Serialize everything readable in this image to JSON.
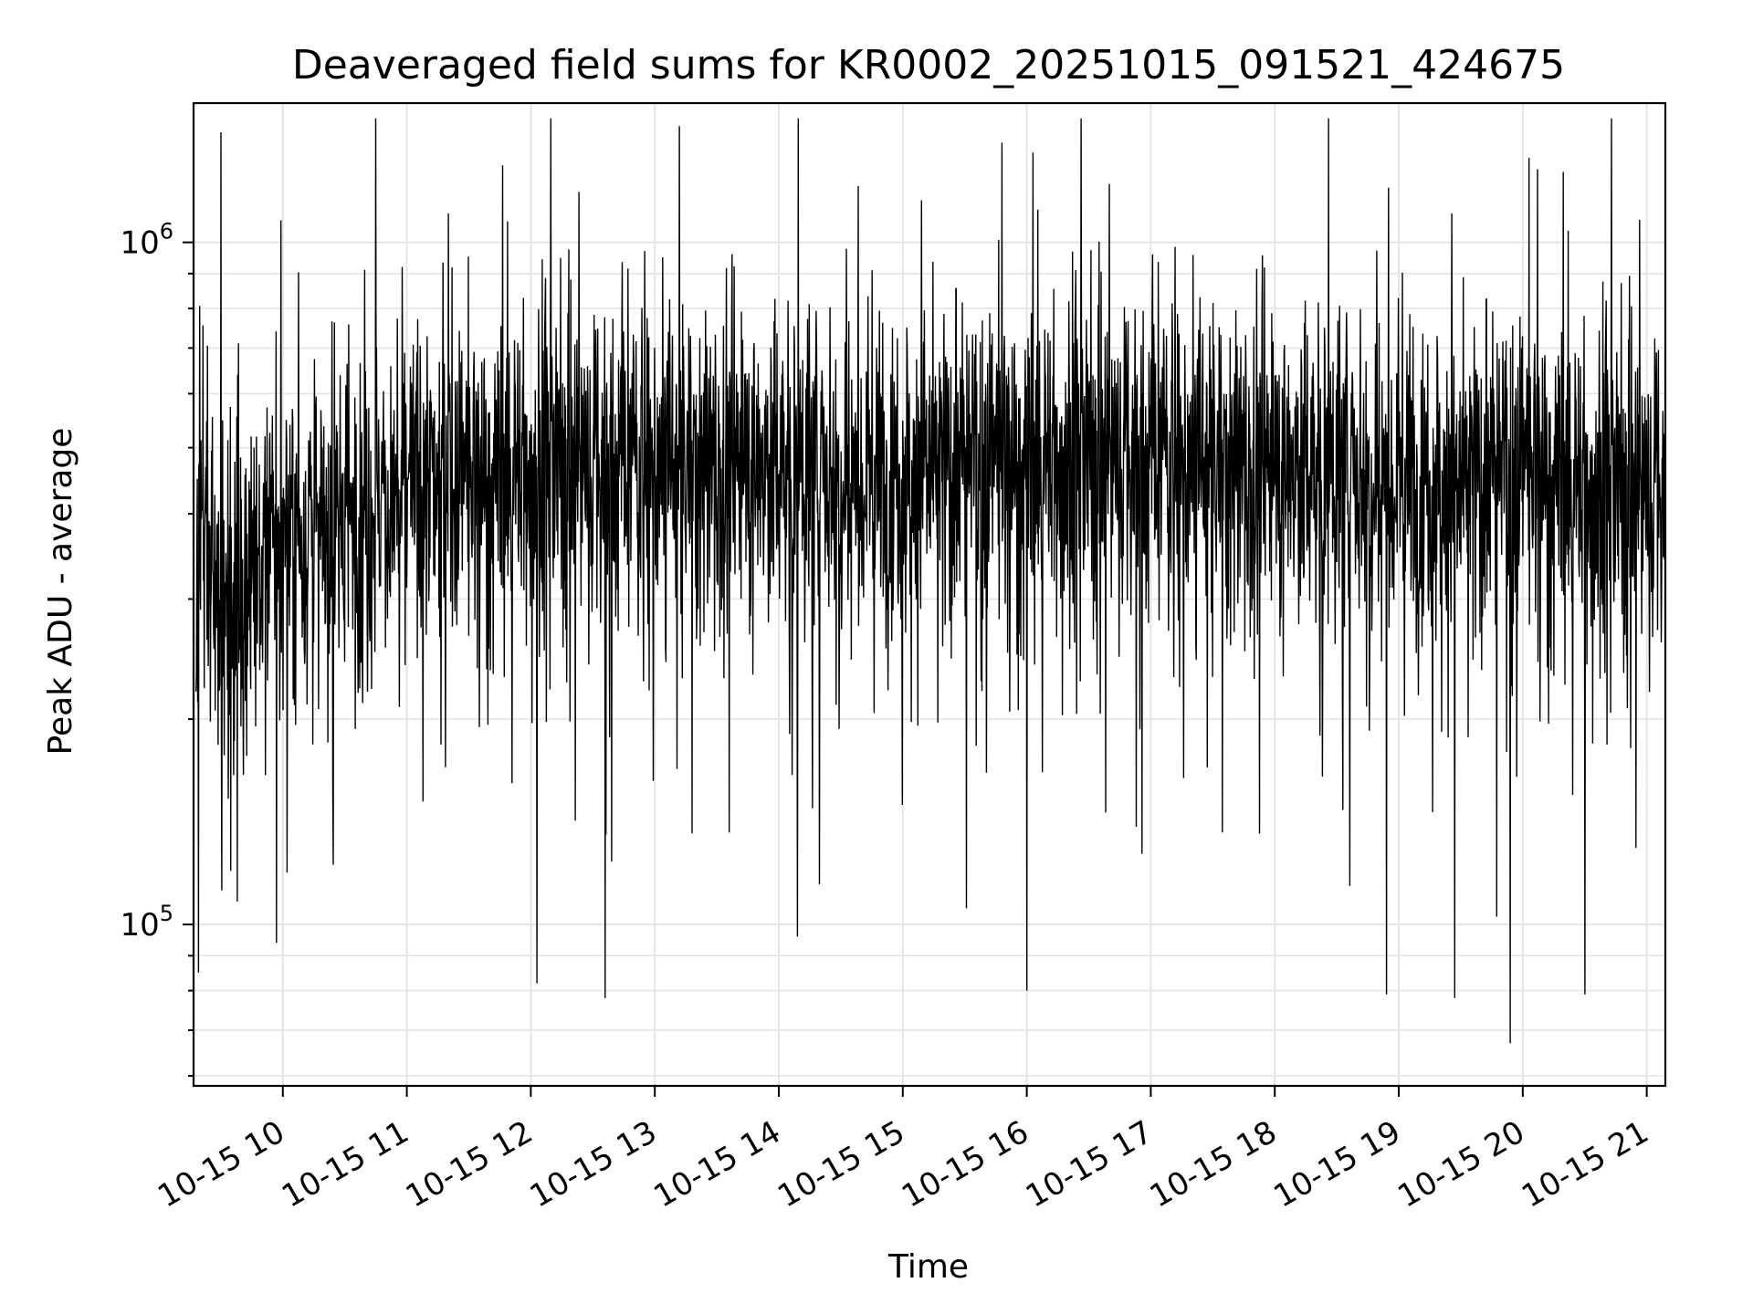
{
  "chart_data": {
    "type": "line",
    "title": "Deaveraged field sums for KR0002_20251015_091521_424675",
    "xlabel": "Time",
    "ylabel": "Peak ADU - average",
    "yscale": "log",
    "ylim": [
      58000,
      1600000
    ],
    "xlim_hours": [
      9.28,
      21.15
    ],
    "grid": true,
    "line_color": "#000000",
    "x_ticks": [
      {
        "hour": 10,
        "label": "10-15 10"
      },
      {
        "hour": 11,
        "label": "10-15 11"
      },
      {
        "hour": 12,
        "label": "10-15 12"
      },
      {
        "hour": 13,
        "label": "10-15 13"
      },
      {
        "hour": 14,
        "label": "10-15 14"
      },
      {
        "hour": 15,
        "label": "10-15 15"
      },
      {
        "hour": 16,
        "label": "10-15 16"
      },
      {
        "hour": 17,
        "label": "10-15 17"
      },
      {
        "hour": 18,
        "label": "10-15 18"
      },
      {
        "hour": 19,
        "label": "10-15 19"
      },
      {
        "hour": 20,
        "label": "10-15 20"
      },
      {
        "hour": 21,
        "label": "10-15 21"
      }
    ],
    "y_ticks": [
      {
        "value": 100000,
        "base": "10",
        "exp": "5"
      },
      {
        "value": 1000000,
        "base": "10",
        "exp": "6"
      }
    ],
    "series": [
      {
        "name": "deaveraged field sums",
        "envelope_hours": [
          9.3,
          9.5,
          9.8,
          10.0,
          10.5,
          11.0,
          12.0,
          13.0,
          14.0,
          15.0,
          16.0,
          17.0,
          18.0,
          19.0,
          19.5,
          20.0,
          20.5,
          21.0,
          21.15
        ],
        "median_values": [
          380000,
          300000,
          330000,
          360000,
          390000,
          430000,
          470000,
          480000,
          470000,
          460000,
          480000,
          490000,
          470000,
          460000,
          440000,
          470000,
          440000,
          430000,
          450000
        ],
        "points_count": 3600,
        "notable_minima": [
          [
            9.32,
            85000
          ],
          [
            9.95,
            94000
          ],
          [
            12.05,
            82000
          ],
          [
            12.6,
            78000
          ],
          [
            14.15,
            96000
          ],
          [
            16.0,
            80000
          ],
          [
            18.9,
            79000
          ],
          [
            19.45,
            78000
          ],
          [
            19.9,
            67000
          ],
          [
            20.5,
            79000
          ]
        ],
        "notable_maxima": [
          [
            9.5,
            1450000
          ],
          [
            10.75,
            1520000
          ],
          [
            13.2,
            1480000
          ],
          [
            15.8,
            1400000
          ],
          [
            20.05,
            1330000
          ],
          [
            20.12,
            1280000
          ]
        ]
      }
    ]
  }
}
